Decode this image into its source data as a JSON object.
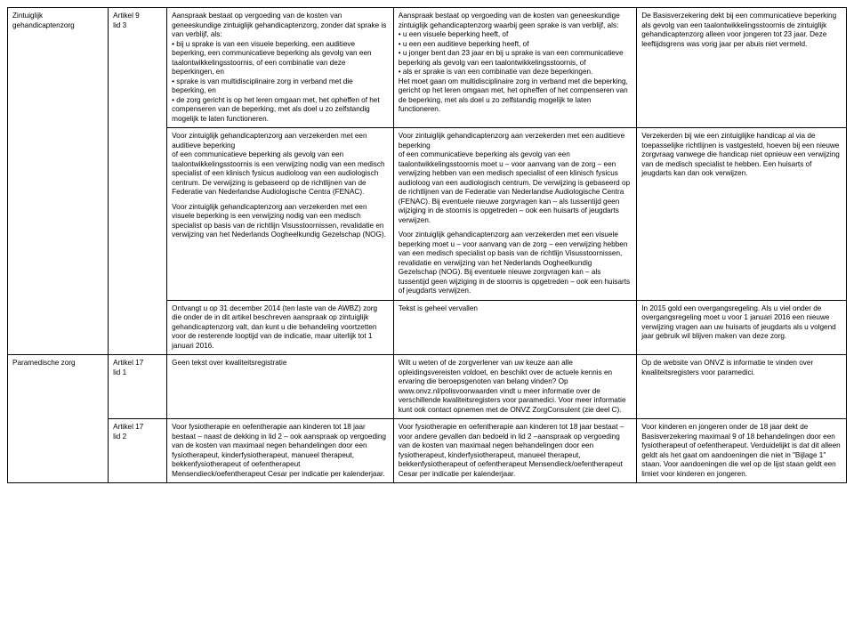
{
  "rows": [
    {
      "topic": "Zintuiglijk gehandicaptenzorg",
      "article": "Artikel 9\nlid 3",
      "c": "Aanspraak bestaat op vergoeding van de kosten van geneeskundige zintuiglijk gehandicaptenzorg, zonder dat sprake is van verblijf, als:\n• bij u sprake is van een visuele beperking, een auditieve beperking, een communicatieve beperking als gevolg van een taalontwikkelingsstoornis, of een combinatie van deze beperkingen, en\n• sprake is van multidisciplinaire zorg in verband met die beperking, en\n• de zorg gericht is op het leren omgaan met, het opheffen of het compenseren van de beperking, met als doel u zo zelfstandig mogelijk te laten functioneren.",
      "d": "Aanspraak bestaat op vergoeding van de kosten van geneeskundige zintuiglijk gehandicaptenzorg waarbij geen sprake is van verblijf, als:\n• u een visuele beperking heeft, of\n• u een een auditieve beperking heeft, of\n• u jonger bent dan 23 jaar en bij u sprake is van een communicatieve beperking als gevolg van een taalontwikkelingsstoornis, of\n• als er sprake is van een combinatie van deze beperkingen.\nHet moet gaan om multidisciplinaire zorg in verband met die beperking, gericht op het leren omgaan met, het opheffen of het compenseren van de beperking, met als doel u zo zelfstandig mogelijk te laten functioneren.",
      "e": "De Basisverzekering dekt bij een communicatieve beperking als gevolg van een taalontwikkelingsstoornis de zintuiglijk gehandicaptenzorg alleen voor jongeren tot 23 jaar. Deze leeftijdsgrens was vorig jaar per abuis niet vermeld.",
      "rowspanA": 3,
      "rowspanB": 3
    },
    {
      "c": "Voor zintuiglijk gehandicaptenzorg aan verzekerden met een auditieve beperking\nof een communicatieve beperking als gevolg van een taalontwikkelingsstoornis is een verwijzing nodig van een medisch specialist of een klinisch fysicus audioloog van een audiologisch centrum. De verwijzing is gebaseerd op de richtlijnen van de Federatie van Nederlandse Audiologische Centra (FENAC).\n\nVoor zintuiglijk gehandicaptenzorg aan verzekerden met een visuele beperking is een verwijzing nodig van een medisch specialist op basis van de richtlijn Visusstoornissen, revalidatie en verwijzing van het Nederlands Oogheelkundig Gezelschap (NOG).",
      "d": "Voor zintuiglijk gehandicaptenzorg aan verzekerden met een auditieve beperking\nof een communicatieve beperking als gevolg van een taalontwikkelingsstoornis moet u – voor aanvang van de zorg – een verwijzing hebben van een medisch specialist of een klinisch fysicus audioloog van een audiologisch centrum. De verwijzing is gebaseerd op de richtlijnen van de Federatie van Nederlandse Audiologische Centra (FENAC). Bij eventuele nieuwe zorgvragen kan – als tussentijd geen wijziging in de stoornis is opgetreden – ook een huisarts of jeugdarts verwijzen.\n\nVoor zintuiglijk gehandicaptenzorg aan verzekerden met een visuele beperking moet u – voor aanvang van de zorg – een verwijzing hebben van een medisch specialist op basis van de richtlijn Visusstoornissen, revalidatie en verwijzing van het Nederlands Oogheelkundig Gezelschap (NOG). Bij eventuele nieuwe zorgvragen kan – als tussentijd geen wijziging in de stoornis is opgetreden – ook een huisarts of jeugdarts verwijzen.",
      "e": "Verzekerden bij wie een zintuiglijke handicap al via de toepasselijke richtlijnen is vastgesteld, hoeven bij een nieuwe zorgvraag vanwege die handicap niet opnieuw een verwijzing van de medisch specialist te hebben. Een huisarts of jeugdarts kan dan ook verwijzen."
    },
    {
      "c": "Ontvangt u op 31 december 2014 (ten laste van de AWBZ) zorg die onder de in dit artikel beschreven aanspraak op zintuiglijk gehandicaptenzorg valt, dan kunt u die behandeling voortzetten voor de resterende looptijd van de indicatie, maar uiterlijk tot 1 januari 2016.",
      "d": "Tekst is geheel vervallen",
      "e": "In 2015 gold een overgangsregeling. Als u viel onder de overgangsregeling moet u voor 1 januari 2016 een nieuwe verwijzing vragen aan uw huisarts of jeugdarts als u volgend jaar gebruik wil blijven maken van deze zorg."
    },
    {
      "topic": "Paramedische zorg",
      "article": "Artikel 17\nlid 1",
      "c": "Geen tekst over kwaliteitsregistratie",
      "d": "Wilt u weten of de zorgverlener van uw keuze aan alle opleidingsvereisten voldoet, en beschikt over de actuele kennis en ervaring die beroepsgenoten van belang vinden? Op www.onvz.nl/polisvoorwaarden vindt u meer informatie over de verschillende kwaliteitsregisters voor paramedici. Voor meer informatie kunt ook contact opnemen met de ONVZ ZorgConsulent (zie deel C).",
      "e": "Op de website van ONVZ is informatie te vinden over kwaliteitsregisters voor paramedici.",
      "rowspanA": 2
    },
    {
      "article": "Artikel 17\nlid 2",
      "c": "Voor fysiotherapie en oefentherapie aan kinderen tot 18 jaar bestaat – naast de dekking in lid 2 – ook aanspraak op vergoeding van de kosten van maximaal negen behandelingen door een fysiotherapeut, kinderfysiotherapeut, manueel therapeut, bekkenfysiotherapeut of oefentherapeut Mensendieck/oefentherapeut Cesar per indicatie per kalenderjaar.",
      "d": "Voor fysiotherapie en oefentherapie aan kinderen tot 18 jaar bestaat – voor andere gevallen dan bedoeld in lid 2 –aanspraak op vergoeding van de kosten van maximaal negen behandelingen door een fysiotherapeut, kinderfysiotherapeut, manueel therapeut, bekkenfysiotherapeut of oefentherapeut Mensendieck/oefentherapeut Cesar per indicatie per kalenderjaar.",
      "e": "Voor kinderen en jongeren onder de 18 jaar dekt de Basisverzekering maximaal 9 of 18 behandelingen door een fysiotherapeut of oefentherapeut. Verduidelijkt is dat dit alleen geldt als het gaat om aandoeningen die niet in \"Bijlage 1\" staan. Voor aandoeningen die wel op de lijst staan geldt een limiet voor kinderen en jongeren."
    }
  ]
}
